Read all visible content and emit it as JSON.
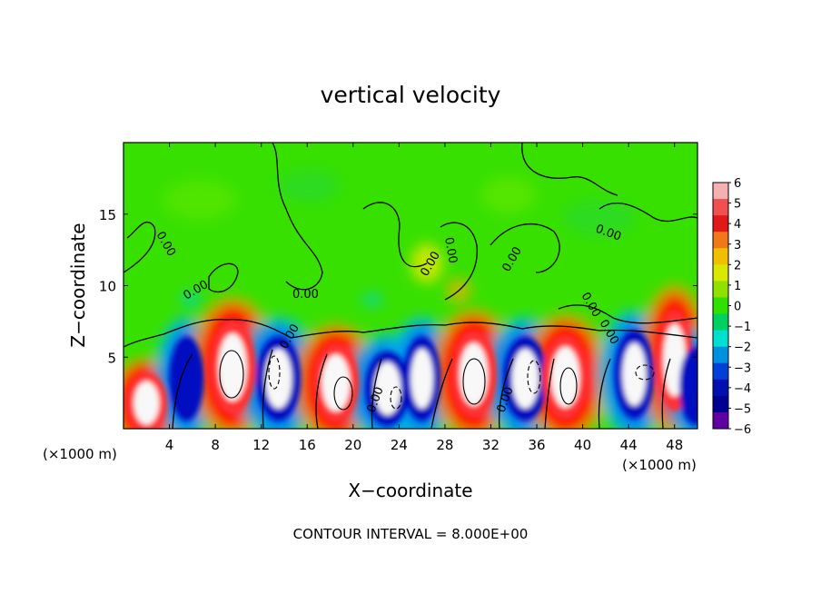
{
  "chart_data": {
    "type": "heatmap",
    "title": "vertical velocity",
    "xlabel": "X−coordinate",
    "ylabel": "Z−coordinate",
    "x_unit": "(×1000 m)",
    "y_unit": "(×1000 m)",
    "xlim": [
      0,
      50
    ],
    "ylim": [
      0,
      20
    ],
    "x_ticks": [
      4,
      8,
      12,
      16,
      20,
      24,
      28,
      32,
      36,
      40,
      44,
      48
    ],
    "y_ticks": [
      5,
      10,
      15
    ],
    "colorbar": {
      "range": [
        -6,
        6
      ],
      "ticks": [
        6,
        5,
        4,
        3,
        2,
        1,
        0,
        -1,
        -2,
        -3,
        -4,
        -5,
        -6
      ],
      "tick_labels": [
        "6",
        "5",
        "4",
        "3",
        "2",
        "1",
        "0",
        "−1",
        "−2",
        "−3",
        "−4",
        "−5",
        "−6"
      ],
      "colors": [
        "#f7b0b0",
        "#f05050",
        "#e01818",
        "#f07818",
        "#f0c000",
        "#d8e800",
        "#90e000",
        "#30e000",
        "#00d060",
        "#00e0d0",
        "#0090e0",
        "#0040d8",
        "#0010b0",
        "#000090",
        "#6000a0"
      ]
    },
    "annotation": "CONTOUR INTERVAL = 8.000E+00",
    "contour_labels": [
      "0.00",
      "0.00",
      "0.00",
      "0.00",
      "0.00",
      "0.00",
      "0.00",
      "0.00",
      "0.00",
      "0.00",
      "0.00",
      "0.00"
    ],
    "cells": [
      {
        "x": 2.0,
        "z": 1.8,
        "sign": 1,
        "amp": 6
      },
      {
        "x": 5.5,
        "z": 3.5,
        "sign": -1,
        "amp": 4.5
      },
      {
        "x": 9.5,
        "z": 4.3,
        "sign": 1,
        "amp": 7
      },
      {
        "x": 13.5,
        "z": 3.5,
        "sign": -1,
        "amp": 6.5
      },
      {
        "x": 18.5,
        "z": 3.2,
        "sign": 1,
        "amp": 7
      },
      {
        "x": 23.0,
        "z": 2.8,
        "sign": -1,
        "amp": 6.5
      },
      {
        "x": 26.0,
        "z": 3.5,
        "sign": -1,
        "amp": 5
      },
      {
        "x": 30.5,
        "z": 3.8,
        "sign": 1,
        "amp": 7
      },
      {
        "x": 35.0,
        "z": 3.5,
        "sign": -1,
        "amp": 6.5
      },
      {
        "x": 38.5,
        "z": 3.6,
        "sign": 1,
        "amp": 7
      },
      {
        "x": 44.5,
        "z": 3.8,
        "sign": -1,
        "amp": 5.5
      },
      {
        "x": 48.0,
        "z": 4.8,
        "sign": 1,
        "amp": 5
      },
      {
        "x": 49.8,
        "z": 3.0,
        "sign": -1,
        "amp": 4
      }
    ]
  }
}
